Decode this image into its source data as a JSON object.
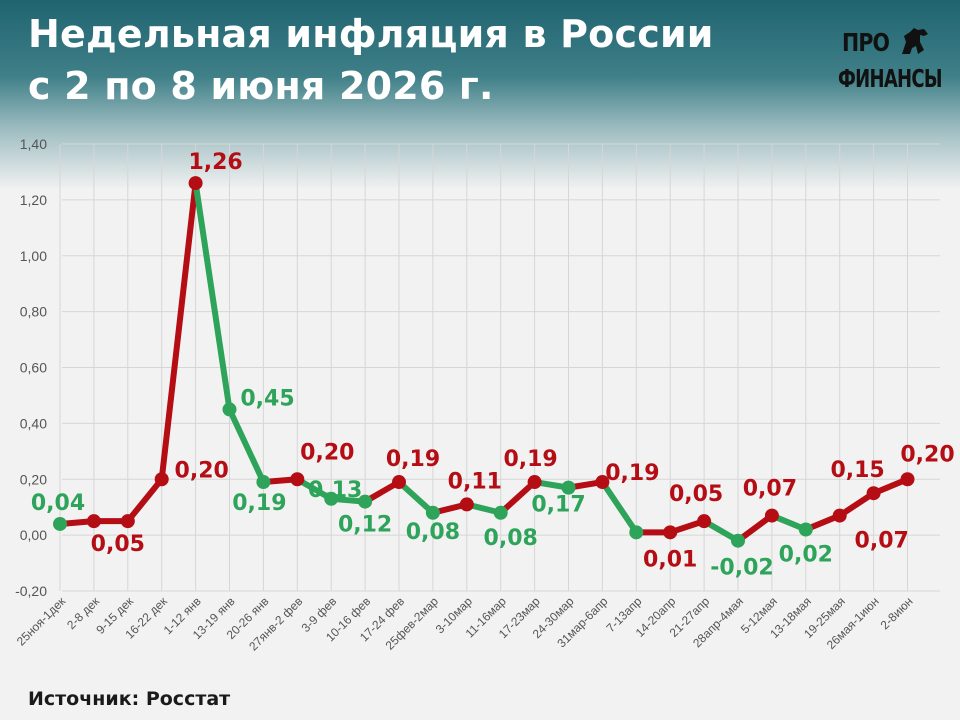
{
  "header": {
    "title_line1": "Недельная инфляция в России",
    "title_line2": "с 2 по 8 июня 2026 г."
  },
  "logo": {
    "line1": "ПРО",
    "line2": "ФИНАНСЫ"
  },
  "source": "Источник: Росстат",
  "colors": {
    "up": "#b50d14",
    "down": "#2ea35a",
    "grid": "#d6d6d6",
    "axis_text": "#555555"
  },
  "chart_data": {
    "type": "line",
    "title": "",
    "xlabel": "",
    "ylabel": "",
    "ylim": [
      -0.2,
      1.4
    ],
    "y_ticks": [
      "-0,20",
      "0,00",
      "0,20",
      "0,40",
      "0,60",
      "0,80",
      "1,00",
      "1,20",
      "1,40"
    ],
    "grid": "vertical and horizontal",
    "categories": [
      "25ноя-1дек",
      "2-8 дек",
      "9-15 дек",
      "16-22 дек",
      "1-12 янв",
      "13-19 янв",
      "20-26 янв",
      "27янв-2 фев",
      "3-9 фев",
      "10-16 фев",
      "17-24 фев",
      "25фев-2мар",
      "3-10мар",
      "11-16мар",
      "17-23мар",
      "24-30мар",
      "31мар-6апр",
      "7-13апр",
      "14-20апр",
      "21-27апр",
      "28апр-4мая",
      "5-12мая",
      "13-18мая",
      "19-25мая",
      "26мая-1июн",
      "2-8июн"
    ],
    "values": [
      0.04,
      0.05,
      0.05,
      0.2,
      1.26,
      0.45,
      0.19,
      0.2,
      0.13,
      0.12,
      0.19,
      0.08,
      0.11,
      0.08,
      0.19,
      0.17,
      0.19,
      0.01,
      0.01,
      0.05,
      -0.02,
      0.07,
      0.02,
      0.07,
      0.15,
      0.2
    ],
    "data_labels": [
      {
        "i": 0,
        "text": "0,04"
      },
      {
        "i": 2,
        "text": "0,05"
      },
      {
        "i": 3,
        "text": "0,20"
      },
      {
        "i": 4,
        "text": "1,26"
      },
      {
        "i": 5,
        "text": "0,45"
      },
      {
        "i": 6,
        "text": "0,19"
      },
      {
        "i": 7,
        "text": "0,20"
      },
      {
        "i": 8,
        "text": "0,13"
      },
      {
        "i": 9,
        "text": "0,12"
      },
      {
        "i": 10,
        "text": "0,19"
      },
      {
        "i": 11,
        "text": "0,08"
      },
      {
        "i": 12,
        "text": "0,11"
      },
      {
        "i": 13,
        "text": "0,08"
      },
      {
        "i": 14,
        "text": "0,19"
      },
      {
        "i": 15,
        "text": "0,17"
      },
      {
        "i": 16,
        "text": "0,19"
      },
      {
        "i": 18,
        "text": "0,01"
      },
      {
        "i": 19,
        "text": "0,05"
      },
      {
        "i": 20,
        "text": "-0,02"
      },
      {
        "i": 21,
        "text": "0,07"
      },
      {
        "i": 22,
        "text": "0,02"
      },
      {
        "i": 23,
        "text": "0,07"
      },
      {
        "i": 24,
        "text": "0,15"
      },
      {
        "i": 25,
        "text": "0,20"
      }
    ]
  }
}
